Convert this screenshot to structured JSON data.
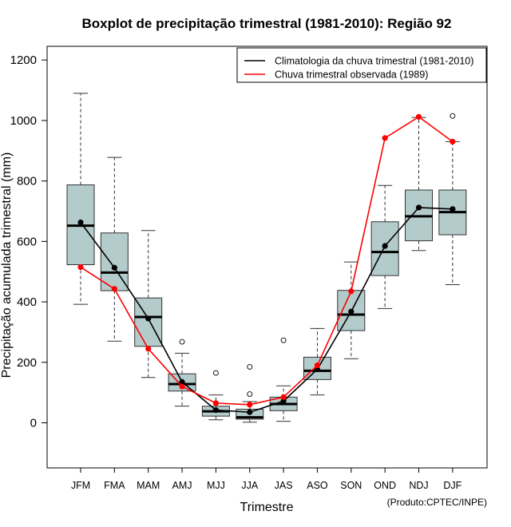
{
  "chart_data": {
    "type": "boxplot",
    "title": "Boxplot de precipitação trimestral (1981-2010): Região 92",
    "xlabel": "Trimestre",
    "ylabel": "Precipitação acumulada trimestral (mm)",
    "caption": "(Produto:CPTEC/INPE)",
    "ylim": [
      -150,
      1250
    ],
    "yticks": [
      0,
      200,
      400,
      600,
      800,
      1000,
      1200
    ],
    "categories": [
      "JFM",
      "FMA",
      "MAM",
      "AMJ",
      "MJJ",
      "JJA",
      "JAS",
      "ASO",
      "SON",
      "OND",
      "NDJ",
      "DJF"
    ],
    "boxes": [
      {
        "whisker_low": 392,
        "q1": 523,
        "median": 652,
        "q3": 787,
        "whisker_high": 1090,
        "outliers": []
      },
      {
        "whisker_low": 270,
        "q1": 437,
        "median": 497,
        "q3": 628,
        "whisker_high": 878,
        "outliers": []
      },
      {
        "whisker_low": 150,
        "q1": 253,
        "median": 350,
        "q3": 413,
        "whisker_high": 636,
        "outliers": []
      },
      {
        "whisker_low": 55,
        "q1": 105,
        "median": 128,
        "q3": 162,
        "whisker_high": 230,
        "outliers": [
          268
        ]
      },
      {
        "whisker_low": 10,
        "q1": 22,
        "median": 38,
        "q3": 55,
        "whisker_high": 92,
        "outliers": [
          165
        ]
      },
      {
        "whisker_low": 2,
        "q1": 12,
        "median": 18,
        "q3": 45,
        "whisker_high": 70,
        "outliers": [
          95,
          185
        ]
      },
      {
        "whisker_low": 5,
        "q1": 40,
        "median": 62,
        "q3": 85,
        "whisker_high": 122,
        "outliers": [
          273
        ]
      },
      {
        "whisker_low": 92,
        "q1": 143,
        "median": 172,
        "q3": 217,
        "whisker_high": 312,
        "outliers": []
      },
      {
        "whisker_low": 212,
        "q1": 305,
        "median": 358,
        "q3": 438,
        "whisker_high": 532,
        "outliers": []
      },
      {
        "whisker_low": 378,
        "q1": 487,
        "median": 565,
        "q3": 665,
        "whisker_high": 785,
        "outliers": []
      },
      {
        "whisker_low": 570,
        "q1": 602,
        "median": 683,
        "q3": 770,
        "whisker_high": 1010,
        "outliers": []
      },
      {
        "whisker_low": 457,
        "q1": 622,
        "median": 697,
        "q3": 770,
        "whisker_high": 930,
        "outliers": [
          1015
        ]
      }
    ],
    "series": [
      {
        "name": "Climatologia da chuva trimestral (1981-2010)",
        "color": "#000000",
        "values": [
          663,
          513,
          345,
          135,
          42,
          35,
          72,
          177,
          368,
          585,
          712,
          707
        ]
      },
      {
        "name": "Chuva trimestral observada (1989)",
        "color": "#ff0000",
        "values": [
          515,
          443,
          245,
          120,
          65,
          60,
          85,
          190,
          435,
          942,
          1012,
          930
        ]
      }
    ],
    "legend_position": "top-right",
    "box_fill": "#b4cbcb",
    "colors": {
      "box_stroke": "#333333",
      "whisker": "#333333",
      "grid": "none"
    }
  }
}
